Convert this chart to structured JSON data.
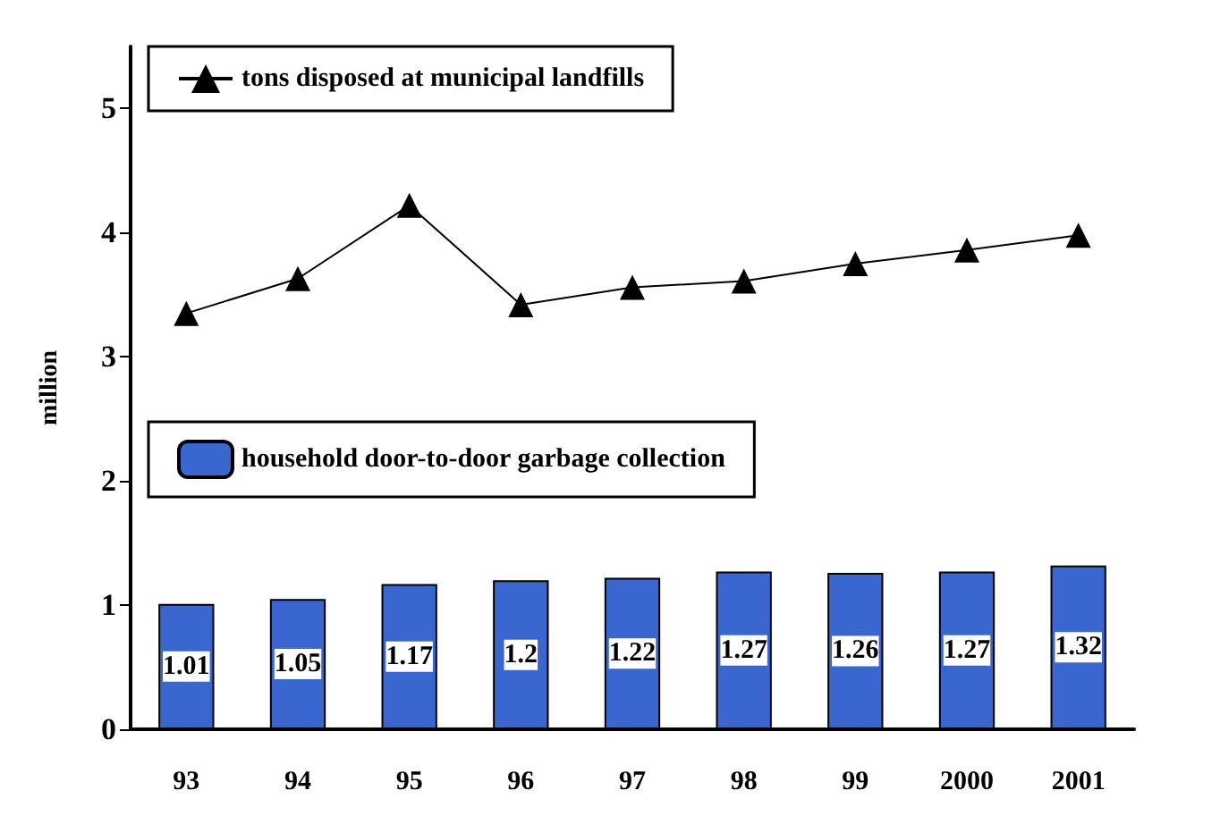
{
  "chart_data": {
    "type": "bar",
    "ylabel": "million",
    "categories": [
      "93",
      "94",
      "95",
      "96",
      "97",
      "98",
      "99",
      "2000",
      "2001"
    ],
    "series": [
      {
        "name": "household door-to-door garbage collection",
        "color": "#3a66d0",
        "values": [
          1.01,
          1.05,
          1.17,
          1.2,
          1.22,
          1.27,
          1.26,
          1.27,
          1.32
        ],
        "value_labels": [
          "1.01",
          "1.05",
          "1.17",
          "1.2",
          "1.22",
          "1.27",
          "1.26",
          "1.27",
          "1.32"
        ]
      },
      {
        "name": "tons disposed at municipal landfills",
        "type": "line",
        "color": "#000000",
        "marker": "triangle",
        "values": [
          3.35,
          3.63,
          4.22,
          3.42,
          3.56,
          3.61,
          3.75,
          3.86,
          3.98
        ]
      }
    ],
    "ylim": [
      0,
      5.5
    ],
    "yticks": [
      0,
      1,
      2,
      3,
      4,
      5
    ],
    "grid": false,
    "legend": "top left"
  }
}
